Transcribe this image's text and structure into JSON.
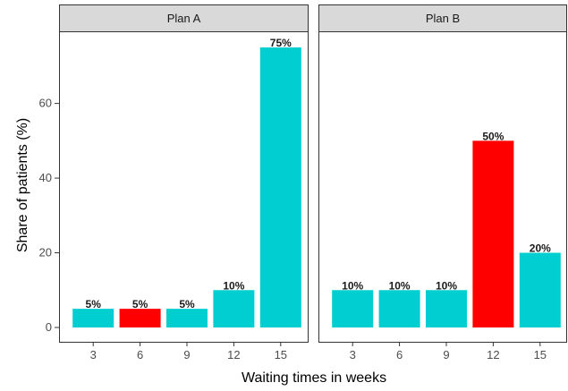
{
  "chart_data": {
    "type": "bar",
    "xlabel": "Waiting times in weeks",
    "ylabel": "Share of patients (%)",
    "ylim": [
      0,
      77
    ],
    "yticks": [
      0,
      20,
      40,
      60
    ],
    "grid": false,
    "facets": [
      {
        "panel": "Plan A",
        "categories": [
          "3",
          "6",
          "9",
          "12",
          "15"
        ],
        "values": [
          5,
          5,
          5,
          10,
          75
        ],
        "labels": [
          "5%",
          "5%",
          "5%",
          "10%",
          "75%"
        ],
        "colors": [
          "#00CED1",
          "#FF0000",
          "#00CED1",
          "#00CED1",
          "#00CED1"
        ]
      },
      {
        "panel": "Plan B",
        "categories": [
          "3",
          "6",
          "9",
          "12",
          "15"
        ],
        "values": [
          10,
          10,
          10,
          50,
          20
        ],
        "labels": [
          "10%",
          "10%",
          "10%",
          "50%",
          "20%"
        ],
        "colors": [
          "#00CED1",
          "#00CED1",
          "#00CED1",
          "#FF0000",
          "#00CED1"
        ]
      }
    ]
  },
  "colors": {
    "bar_default": "#00CED1",
    "bar_highlight": "#FF0000",
    "strip_background": "#D9D9D9",
    "panel_border": "#333333"
  }
}
